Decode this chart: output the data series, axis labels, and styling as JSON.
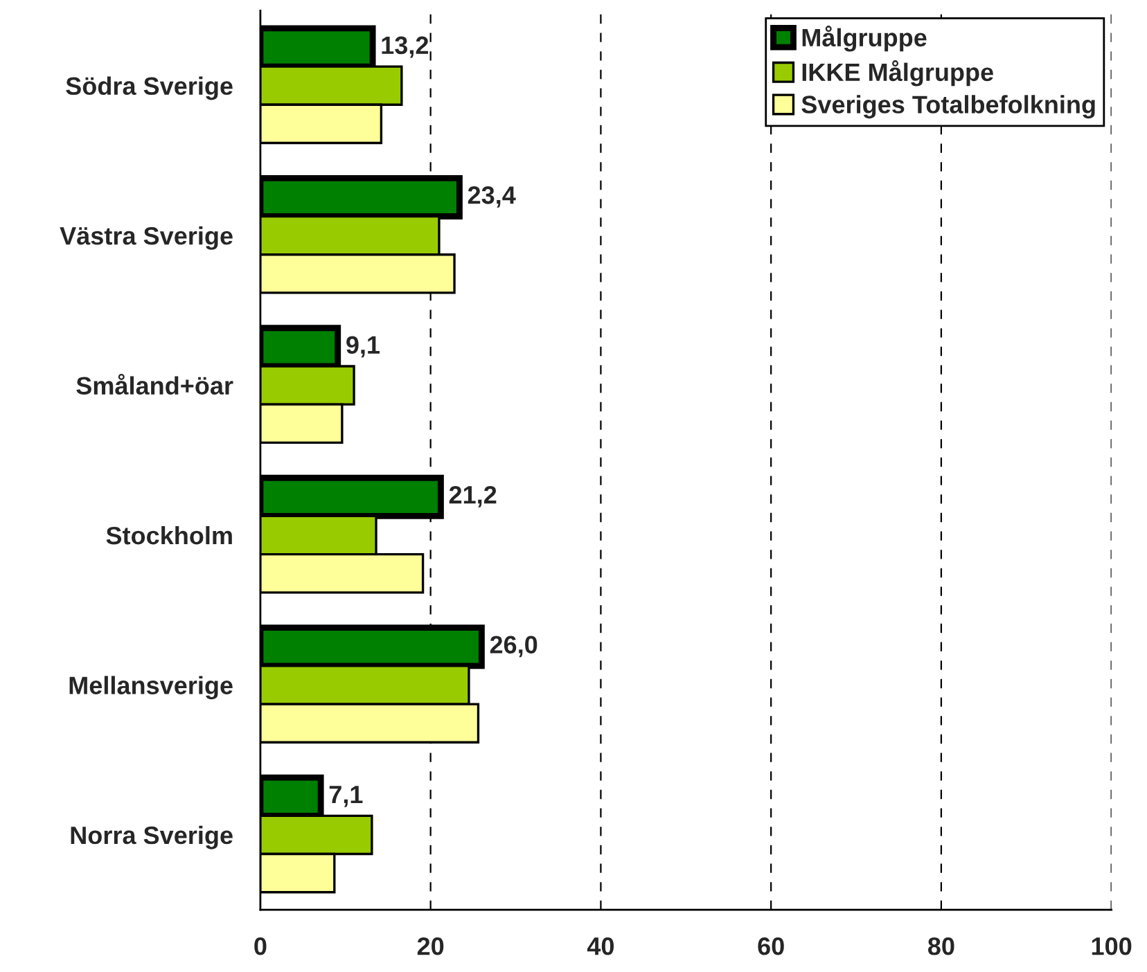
{
  "chart_data": {
    "type": "bar",
    "orientation": "horizontal",
    "categories": [
      "Södra Sverige",
      "Västra Sverige",
      "Småland+öar",
      "Stockholm",
      "Mellansverige",
      "Norra Sverige"
    ],
    "series": [
      {
        "name": "Målgruppe",
        "color": "#008000",
        "values": [
          13.2,
          23.4,
          9.1,
          21.2,
          26.0,
          7.1
        ],
        "value_labels": [
          "13,2",
          "23,4",
          "9,1",
          "21,2",
          "26,0",
          "7,1"
        ]
      },
      {
        "name": "IKKE Målgruppe",
        "color": "#99cc00",
        "values": [
          16.6,
          21.0,
          11.0,
          13.6,
          24.5,
          13.1
        ]
      },
      {
        "name": "Sveriges Totalbefolkning",
        "color": "#ffff99",
        "values": [
          14.2,
          22.8,
          9.6,
          19.1,
          25.6,
          8.7
        ]
      }
    ],
    "xlim": [
      0,
      100
    ],
    "xticks": [
      0,
      20,
      40,
      60,
      80,
      100
    ],
    "grid": "x",
    "legend": "top right"
  }
}
